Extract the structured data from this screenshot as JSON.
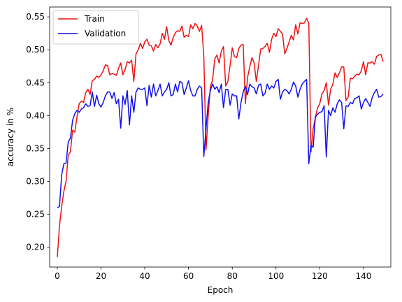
{
  "chart_data": {
    "type": "line",
    "xlabel": "Epoch",
    "ylabel": "accuracy in %",
    "xlim": [
      -3.5,
      152.5
    ],
    "ylim": [
      0.17,
      0.565
    ],
    "xticks": [
      0,
      20,
      40,
      60,
      80,
      100,
      120,
      140
    ],
    "yticks": [
      0.2,
      0.25,
      0.3,
      0.35,
      0.4,
      0.45,
      0.5,
      0.55
    ],
    "grid": false,
    "legend_position": "top-left",
    "series": [
      {
        "name": "Train",
        "color": "#ee1111",
        "x": [
          0,
          1,
          2,
          3,
          4,
          5,
          6,
          7,
          8,
          9,
          10,
          11,
          12,
          13,
          14,
          15,
          16,
          17,
          18,
          19,
          20,
          21,
          22,
          23,
          24,
          25,
          26,
          27,
          28,
          29,
          30,
          31,
          32,
          33,
          34,
          35,
          36,
          37,
          38,
          39,
          40,
          41,
          42,
          43,
          44,
          45,
          46,
          47,
          48,
          49,
          50,
          51,
          52,
          53,
          54,
          55,
          56,
          57,
          58,
          59,
          60,
          61,
          62,
          63,
          64,
          65,
          66,
          67,
          68,
          69,
          70,
          71,
          72,
          73,
          74,
          75,
          76,
          77,
          78,
          79,
          80,
          81,
          82,
          83,
          84,
          85,
          86,
          87,
          88,
          89,
          90,
          91,
          92,
          93,
          94,
          95,
          96,
          97,
          98,
          99,
          100,
          101,
          102,
          103,
          104,
          105,
          106,
          107,
          108,
          109,
          110,
          111,
          112,
          113,
          114,
          115,
          116,
          117,
          118,
          119,
          120,
          121,
          122,
          123,
          124,
          125,
          126,
          127,
          128,
          129,
          130,
          131,
          132,
          133,
          134,
          135,
          136,
          137,
          138,
          139,
          140,
          141,
          142,
          143,
          144,
          145,
          146,
          147,
          148,
          149
        ],
        "values": [
          0.185,
          0.232,
          0.262,
          0.285,
          0.3,
          0.34,
          0.345,
          0.378,
          0.375,
          0.398,
          0.418,
          0.422,
          0.42,
          0.435,
          0.44,
          0.432,
          0.453,
          0.455,
          0.46,
          0.458,
          0.462,
          0.468,
          0.477,
          0.476,
          0.462,
          0.464,
          0.463,
          0.461,
          0.472,
          0.48,
          0.462,
          0.47,
          0.482,
          0.48,
          0.484,
          0.452,
          0.494,
          0.5,
          0.51,
          0.502,
          0.512,
          0.516,
          0.507,
          0.506,
          0.498,
          0.508,
          0.503,
          0.509,
          0.525,
          0.516,
          0.535,
          0.514,
          0.507,
          0.519,
          0.526,
          0.529,
          0.528,
          0.536,
          0.519,
          0.522,
          0.52,
          0.538,
          0.532,
          0.54,
          0.536,
          0.528,
          0.537,
          0.49,
          0.348,
          0.4,
          0.444,
          0.454,
          0.486,
          0.492,
          0.48,
          0.498,
          0.505,
          0.445,
          0.452,
          0.476,
          0.503,
          0.49,
          0.488,
          0.502,
          0.507,
          0.508,
          0.418,
          0.458,
          0.474,
          0.488,
          0.48,
          0.452,
          0.476,
          0.501,
          0.502,
          0.505,
          0.51,
          0.496,
          0.516,
          0.525,
          0.52,
          0.532,
          0.528,
          0.524,
          0.494,
          0.502,
          0.512,
          0.522,
          0.515,
          0.538,
          0.524,
          0.541,
          0.54,
          0.541,
          0.548,
          0.54,
          0.345,
          0.38,
          0.397,
          0.412,
          0.418,
          0.433,
          0.438,
          0.45,
          0.416,
          0.44,
          0.448,
          0.465,
          0.458,
          0.465,
          0.474,
          0.474,
          0.423,
          0.428,
          0.457,
          0.456,
          0.46,
          0.463,
          0.462,
          0.468,
          0.482,
          0.462,
          0.48,
          0.48,
          0.482,
          0.478,
          0.49,
          0.492,
          0.493,
          0.482
        ]
      },
      {
        "name": "Validation",
        "color": "#1111ee",
        "x": [
          0,
          1,
          2,
          3,
          4,
          5,
          6,
          7,
          8,
          9,
          10,
          11,
          12,
          13,
          14,
          15,
          16,
          17,
          18,
          19,
          20,
          21,
          22,
          23,
          24,
          25,
          26,
          27,
          28,
          29,
          30,
          31,
          32,
          33,
          34,
          35,
          36,
          37,
          38,
          39,
          40,
          41,
          42,
          43,
          44,
          45,
          46,
          47,
          48,
          49,
          50,
          51,
          52,
          53,
          54,
          55,
          56,
          57,
          58,
          59,
          60,
          61,
          62,
          63,
          64,
          65,
          66,
          67,
          68,
          69,
          70,
          71,
          72,
          73,
          74,
          75,
          76,
          77,
          78,
          79,
          80,
          81,
          82,
          83,
          84,
          85,
          86,
          87,
          88,
          89,
          90,
          91,
          92,
          93,
          94,
          95,
          96,
          97,
          98,
          99,
          100,
          101,
          102,
          103,
          104,
          105,
          106,
          107,
          108,
          109,
          110,
          111,
          112,
          113,
          114,
          115,
          116,
          117,
          118,
          119,
          120,
          121,
          122,
          123,
          124,
          125,
          126,
          127,
          128,
          129,
          130,
          131,
          132,
          133,
          134,
          135,
          136,
          137,
          138,
          139,
          140,
          141,
          142,
          143,
          144,
          145,
          146,
          147,
          148,
          149
        ],
        "values": [
          0.26,
          0.262,
          0.31,
          0.327,
          0.328,
          0.36,
          0.366,
          0.393,
          0.403,
          0.408,
          0.405,
          0.41,
          0.412,
          0.418,
          0.414,
          0.415,
          0.436,
          0.414,
          0.431,
          0.418,
          0.413,
          0.42,
          0.43,
          0.436,
          0.436,
          0.426,
          0.435,
          0.418,
          0.425,
          0.381,
          0.43,
          0.417,
          0.438,
          0.386,
          0.43,
          0.405,
          0.436,
          0.442,
          0.44,
          0.44,
          0.442,
          0.415,
          0.446,
          0.428,
          0.448,
          0.43,
          0.438,
          0.448,
          0.43,
          0.436,
          0.44,
          0.45,
          0.43,
          0.432,
          0.448,
          0.436,
          0.452,
          0.45,
          0.432,
          0.442,
          0.453,
          0.438,
          0.43,
          0.43,
          0.44,
          0.445,
          0.442,
          0.338,
          0.38,
          0.42,
          0.438,
          0.448,
          0.44,
          0.444,
          0.435,
          0.448,
          0.412,
          0.44,
          0.44,
          0.416,
          0.433,
          0.43,
          0.43,
          0.395,
          0.42,
          0.436,
          0.445,
          0.432,
          0.448,
          0.444,
          0.442,
          0.433,
          0.446,
          0.448,
          0.43,
          0.434,
          0.448,
          0.44,
          0.445,
          0.442,
          0.452,
          0.455,
          0.425,
          0.436,
          0.44,
          0.438,
          0.433,
          0.44,
          0.451,
          0.445,
          0.428,
          0.44,
          0.448,
          0.452,
          0.455,
          0.327,
          0.355,
          0.352,
          0.398,
          0.402,
          0.405,
          0.406,
          0.415,
          0.337,
          0.408,
          0.4,
          0.412,
          0.405,
          0.418,
          0.424,
          0.42,
          0.38,
          0.415,
          0.414,
          0.42,
          0.418,
          0.426,
          0.427,
          0.43,
          0.41,
          0.42,
          0.426,
          0.42,
          0.414,
          0.428,
          0.435,
          0.44,
          0.428,
          0.429,
          0.433
        ]
      }
    ]
  }
}
